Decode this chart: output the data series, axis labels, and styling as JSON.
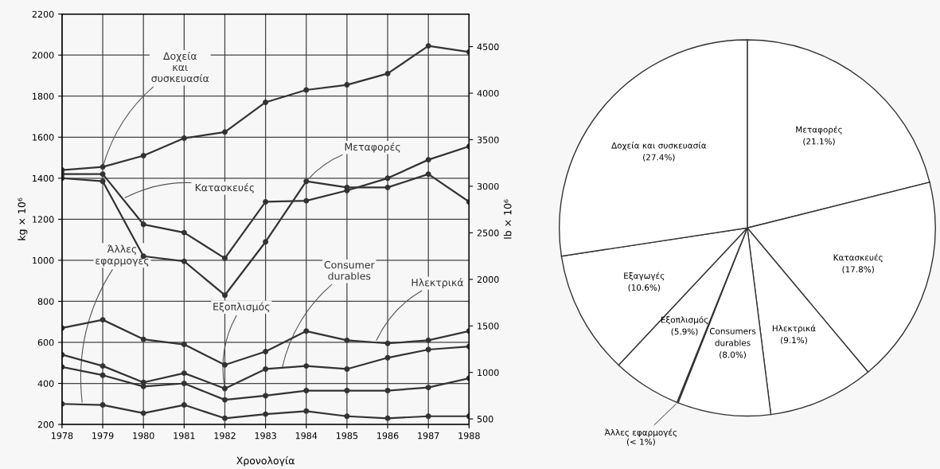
{
  "chart_data": [
    {
      "type": "line",
      "xlabel": "Χρονολογία",
      "ylabel": "kg × 10⁶",
      "y2label": "lb × 10⁶",
      "x": [
        1978,
        1979,
        1980,
        1981,
        1982,
        1983,
        1984,
        1985,
        1986,
        1987,
        1988
      ],
      "series": [
        {
          "color": "#333333",
          "values": [
            1440,
            1455,
            1510,
            1595,
            1625,
            1770,
            1830,
            1855,
            1910,
            2045,
            2015
          ]
        },
        {
          "color": "#333333",
          "values": [
            1420,
            1420,
            1175,
            1135,
            1010,
            1285,
            1290,
            1340,
            1400,
            1490,
            1555
          ]
        },
        {
          "color": "#333333",
          "values": [
            1400,
            1385,
            1020,
            995,
            830,
            1090,
            1385,
            1355,
            1355,
            1420,
            1285
          ]
        },
        {
          "color": "#333333",
          "values": [
            670,
            710,
            615,
            590,
            490,
            555,
            655,
            610,
            595,
            610,
            655
          ]
        },
        {
          "color": "#333333",
          "values": [
            540,
            485,
            405,
            450,
            375,
            470,
            485,
            470,
            525,
            565,
            580
          ]
        },
        {
          "color": "#333333",
          "values": [
            480,
            440,
            385,
            400,
            320,
            340,
            365,
            365,
            365,
            380,
            425
          ]
        },
        {
          "color": "#333333",
          "values": [
            300,
            295,
            255,
            295,
            230,
            250,
            265,
            240,
            230,
            240,
            240
          ]
        }
      ],
      "xlim": [
        1978,
        1988
      ],
      "xticks": [
        1978,
        1979,
        1980,
        1981,
        1982,
        1983,
        1984,
        1985,
        1986,
        1987,
        1988
      ],
      "ylim": [
        200,
        2200
      ],
      "yticks": [
        200,
        400,
        600,
        800,
        1000,
        1200,
        1400,
        1600,
        1800,
        2000,
        2200
      ],
      "y2lim": [
        441,
        4850
      ],
      "y2ticks": [
        500,
        1000,
        1500,
        2000,
        2500,
        3000,
        3500,
        4000,
        4500
      ],
      "grid": true,
      "marker": "circle",
      "line_style": "solid",
      "legend": false,
      "annotations": [
        {
          "text": "Δοχεία\nκαι\nσυσκευασία",
          "x": 1979,
          "y": 1455
        },
        {
          "text": "Κατασκευές",
          "x": 1979.5,
          "y": 1300
        },
        {
          "text": "Μεταφορές",
          "x": 1984,
          "y": 1385
        },
        {
          "text": "Άλλες\nεφαρμογές",
          "x": 1978.5,
          "y": 297
        },
        {
          "text": "Εξοπλισμός",
          "x": 1982,
          "y": 375
        },
        {
          "text": "Consumer\ndurables",
          "x": 1983.4,
          "y": 470
        },
        {
          "text": "Ηλεκτρικά",
          "x": 1985.7,
          "y": 600
        }
      ]
    },
    {
      "type": "pie",
      "categories": [
        "Μεταφορές",
        "Κατασκευές",
        "Ηλεκτρικά",
        "Consumers\ndurables",
        "Άλλες εφαρμογές",
        "Εξοπλισμός",
        "Εξαγωγές",
        "Δοχεία και συσκευασία"
      ],
      "values": [
        21.1,
        17.8,
        9.1,
        8.0,
        0.1,
        5.9,
        10.6,
        27.4
      ],
      "value_labels": [
        "(21.1%)",
        "(17.8%)",
        "(9.1%)",
        "(8.0%)",
        "(< 1%)",
        "(5.9%)",
        "(10.6%)",
        "(27.4%)"
      ],
      "colors": [
        "#ffffff",
        "#ffffff",
        "#ffffff",
        "#ffffff",
        "#ffffff",
        "#ffffff",
        "#ffffff",
        "#ffffff"
      ],
      "legend": false
    }
  ]
}
